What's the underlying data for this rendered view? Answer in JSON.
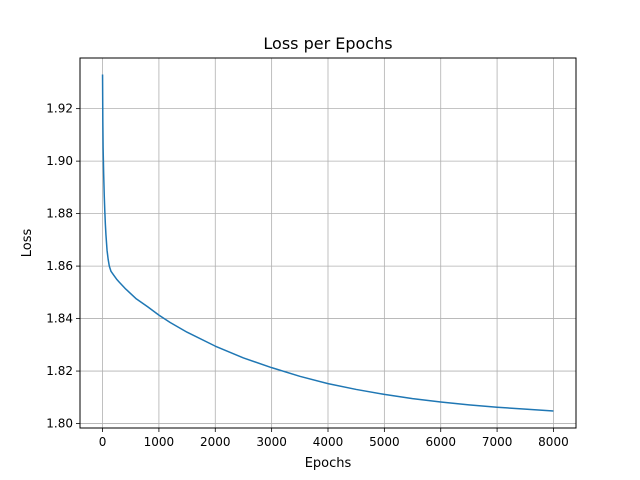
{
  "chart_data": {
    "type": "line",
    "title": "Loss per Epochs",
    "xlabel": "Epochs",
    "ylabel": "Loss",
    "xlim": [
      -400,
      8400
    ],
    "ylim": [
      1.7983,
      1.9393
    ],
    "xticks": [
      0,
      1000,
      2000,
      3000,
      4000,
      5000,
      6000,
      7000,
      8000
    ],
    "yticks": [
      1.8,
      1.82,
      1.84,
      1.86,
      1.88,
      1.9,
      1.92
    ],
    "grid": true,
    "colors": {
      "line": "#1f77b4",
      "grid": "#b0b0b0",
      "axes": "#000000"
    },
    "series": [
      {
        "x": [
          0,
          5,
          10,
          20,
          30,
          40,
          50,
          60,
          80,
          100,
          120,
          150,
          200,
          250,
          300,
          400,
          500,
          600,
          800,
          1000,
          1200,
          1500,
          2000,
          2500,
          3000,
          3500,
          4000,
          4500,
          5000,
          5500,
          6000,
          6500,
          7000,
          7500,
          8000
        ],
        "y": [
          1.933,
          1.915,
          1.905,
          1.895,
          1.887,
          1.881,
          1.876,
          1.872,
          1.866,
          1.8625,
          1.86,
          1.858,
          1.8565,
          1.855,
          1.8538,
          1.8515,
          1.8495,
          1.8475,
          1.8445,
          1.8413,
          1.8385,
          1.8348,
          1.8295,
          1.825,
          1.8213,
          1.818,
          1.8152,
          1.813,
          1.8111,
          1.8095,
          1.8082,
          1.8071,
          1.8062,
          1.8055,
          1.8048
        ]
      }
    ]
  }
}
